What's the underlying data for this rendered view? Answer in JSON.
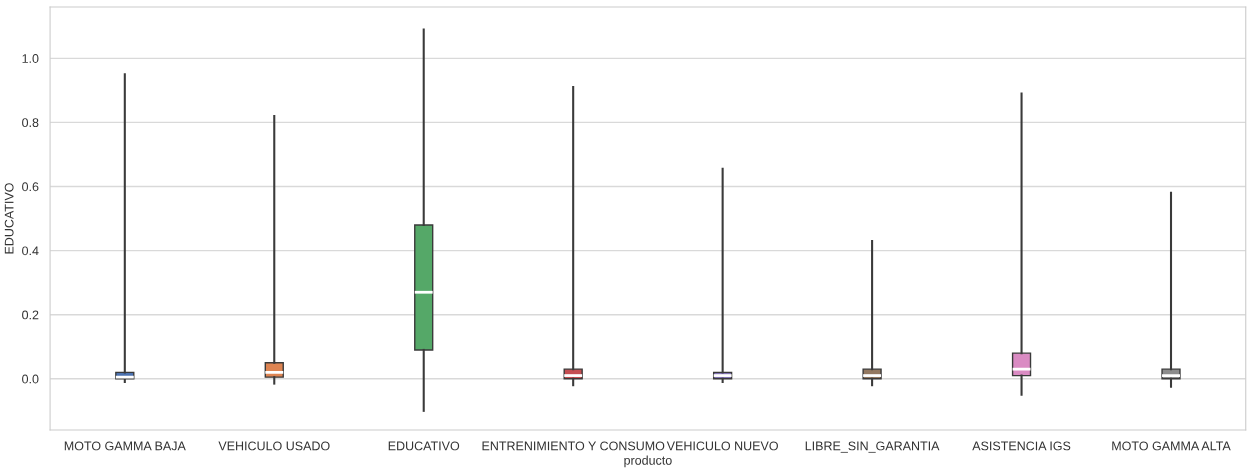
{
  "chart_data": {
    "type": "box",
    "xlabel": "producto",
    "ylabel": "EDUCATIVO",
    "categories": [
      "MOTO GAMMA BAJA",
      "VEHICULO USADO",
      "EDUCATIVO",
      "ENTRENIMIENTO Y CONSUMO",
      "VEHICULO NUEVO",
      "LIBRE_SIN_GARANTIA",
      "ASISTENCIA IGS",
      "MOTO GAMMA ALTA"
    ],
    "colors": [
      "#4c72b0",
      "#dd8452",
      "#55a868",
      "#c44e52",
      "#8172b3",
      "#937860",
      "#da8bc3",
      "#8c8c8c"
    ],
    "boxes": [
      {
        "low": -0.01,
        "q1": 0.0,
        "median": 0.005,
        "q3": 0.02,
        "high": 0.95
      },
      {
        "low": -0.015,
        "q1": 0.005,
        "median": 0.02,
        "q3": 0.05,
        "high": 0.82
      },
      {
        "low": -0.1,
        "q1": 0.09,
        "median": 0.27,
        "q3": 0.48,
        "high": 1.09
      },
      {
        "low": -0.02,
        "q1": 0.0,
        "median": 0.01,
        "q3": 0.03,
        "high": 0.91
      },
      {
        "low": -0.01,
        "q1": 0.0,
        "median": 0.01,
        "q3": 0.02,
        "high": 0.655
      },
      {
        "low": -0.02,
        "q1": 0.0,
        "median": 0.01,
        "q3": 0.03,
        "high": 0.43
      },
      {
        "low": -0.05,
        "q1": 0.01,
        "median": 0.03,
        "q3": 0.08,
        "high": 0.89
      },
      {
        "low": -0.025,
        "q1": 0.0,
        "median": 0.01,
        "q3": 0.03,
        "high": 0.58
      }
    ],
    "ylim": [
      -0.16,
      1.16
    ],
    "yticks": [
      {
        "value": 0,
        "label": "0.0"
      },
      0.2,
      0.4,
      0.6,
      0.8,
      {
        "value": 1,
        "label": "1.0"
      }
    ],
    "grid": "y"
  }
}
